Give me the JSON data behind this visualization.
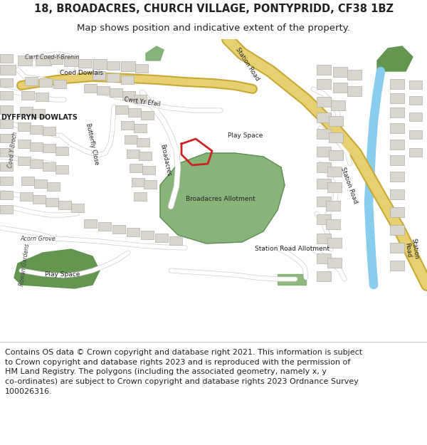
{
  "title": "18, BROADACRES, CHURCH VILLAGE, PONTYPRIDD, CF38 1BZ",
  "subtitle": "Map shows position and indicative extent of the property.",
  "footer_text": "Contains OS data © Crown copyright and database right 2021. This information is subject\nto Crown copyright and database rights 2023 and is reproduced with the permission of\nHM Land Registry. The polygons (including the associated geometry, namely x, y\nco-ordinates) are subject to Crown copyright and database rights 2023 Ordnance Survey\n100026316.",
  "title_fontsize": 10.5,
  "subtitle_fontsize": 9.5,
  "footer_fontsize": 8.0,
  "fig_width": 6.0,
  "fig_height": 6.25,
  "background_color": "#ffffff",
  "map_bg_color": "#f0ede8",
  "road_yellow_outer": "#c8a832",
  "road_yellow_inner": "#e8d070",
  "road_white": "#ffffff",
  "road_white_edge": "#cccccc",
  "green_dark": "#5a9148",
  "green_mid": "#7aad6a",
  "blue_water": "#88ccee",
  "building_face": "#d8d6ce",
  "building_edge": "#b0aea8",
  "plot_red": "#cc2222",
  "text_dark": "#222222",
  "text_mid": "#444444",
  "text_light": "#666666"
}
